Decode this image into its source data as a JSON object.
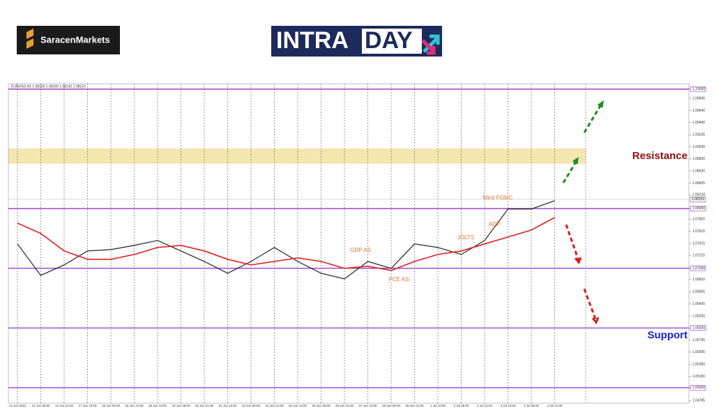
{
  "logo": {
    "brand": "SaracenMarkets",
    "left": "INTRA",
    "right": "DAY"
  },
  "chart_data": {
    "type": "line",
    "header": "EURUSD,H1  1.08158 1.08160 1.08142 1.08153",
    "categories": [
      "13 Jun 2024",
      "14 Jun 05:00",
      "14 Jun 21:00",
      "17 Jun 13:00",
      "18 Jun 05:00",
      "18 Jun 21:00",
      "19 Jun 13:00",
      "20 Jun 05:00",
      "20 Jun 21:00",
      "21 Jun 13:00",
      "24 Jun 05:00",
      "24 Jun 21:00",
      "25 Jun 13:00",
      "26 Jun 05:00",
      "26 Jun 21:00",
      "27 Jun 13:00",
      "28 Jun 05:00",
      "28 Jun 21:00",
      "1 Jul 13:00",
      "2 Jul 05:00",
      "2 Jul 21:00",
      "3 Jul 13:00",
      "4 Jul 05:00",
      "4 Jul 21:00"
    ],
    "series": [
      {
        "name": "EURUSD",
        "color": "#222222",
        "values": [
          1.07407,
          1.06881,
          1.07056,
          1.0729,
          1.07313,
          1.07383,
          1.07465,
          1.0729,
          1.07114,
          1.06916,
          1.07114,
          1.07348,
          1.07114,
          1.06916,
          1.06822,
          1.07114,
          1.06998,
          1.07407,
          1.07348,
          1.07231,
          1.07465,
          1.07991,
          1.07991,
          1.08131
        ]
      },
      {
        "name": "MA",
        "color": "#e02020",
        "values": [
          1.07757,
          1.07582,
          1.0729,
          1.0715,
          1.0715,
          1.07231,
          1.07348,
          1.07383,
          1.0729,
          1.0715,
          1.07056,
          1.07114,
          1.07173,
          1.07114,
          1.06998,
          1.07033,
          1.06963,
          1.07114,
          1.07231,
          1.0729,
          1.07407,
          1.07523,
          1.0764,
          1.0785
        ]
      }
    ],
    "ylim": [
      1.0474,
      1.1009
    ],
    "yticks": [
      {
        "value": 1.1,
        "label": "1.10000"
      },
      {
        "value": 1.09845,
        "label": "1.09845"
      },
      {
        "value": 1.0964,
        "label": "1.09640"
      },
      {
        "value": 1.0944,
        "label": "1.09440"
      },
      {
        "value": 1.09235,
        "label": "1.09235"
      },
      {
        "value": 1.0903,
        "label": "1.09030"
      },
      {
        "value": 1.0883,
        "label": "1.08830"
      },
      {
        "value": 1.0863,
        "label": "1.08630"
      },
      {
        "value": 1.08425,
        "label": "1.08425"
      },
      {
        "value": 1.08228,
        "label": "1.08228"
      },
      {
        "value": 1.08,
        "label": "1.08000"
      },
      {
        "value": 1.0782,
        "label": "1.07820"
      },
      {
        "value": 1.07615,
        "label": "1.07615"
      },
      {
        "value": 1.07415,
        "label": "1.07415"
      },
      {
        "value": 1.07215,
        "label": "1.07215"
      },
      {
        "value": 1.07,
        "label": "1.07000"
      },
      {
        "value": 1.0681,
        "label": "1.06810"
      },
      {
        "value": 1.06605,
        "label": "1.06605"
      },
      {
        "value": 1.06405,
        "label": "1.06405"
      },
      {
        "value": 1.062,
        "label": "1.06200"
      },
      {
        "value": 1.06,
        "label": "1.06000"
      },
      {
        "value": 1.05795,
        "label": "1.05795"
      },
      {
        "value": 1.05595,
        "label": "1.05595"
      },
      {
        "value": 1.0539,
        "label": "1.05390"
      },
      {
        "value": 1.0519,
        "label": "1.05190"
      },
      {
        "value": 1.05,
        "label": "1.05000"
      },
      {
        "value": 1.04785,
        "label": "1.04785"
      }
    ],
    "levels": [
      1.1,
      1.08,
      1.07,
      1.06,
      1.05
    ],
    "level_color": "#9b30c8",
    "resistance_zone": [
      1.0875,
      1.09007
    ],
    "zone_color": "#f5e6b0",
    "last_price": 1.08153,
    "annotations": [
      "GDP AS",
      "PCE AS",
      "JOLTS",
      "ADP",
      "Minit FOMC"
    ],
    "resistance_label": "Resistance",
    "support_label": "Support",
    "grid": true
  }
}
